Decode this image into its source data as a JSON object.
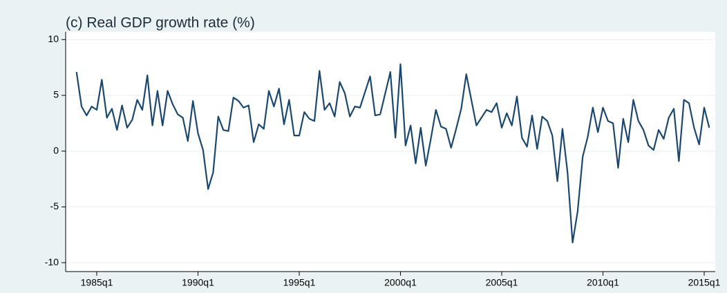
{
  "chart_data": {
    "type": "line",
    "title": "(c) Real GDP growth rate (%)",
    "x": [
      "1984q1",
      "1984q2",
      "1984q3",
      "1984q4",
      "1985q1",
      "1985q2",
      "1985q3",
      "1985q4",
      "1986q1",
      "1986q2",
      "1986q3",
      "1986q4",
      "1987q1",
      "1987q2",
      "1987q3",
      "1987q4",
      "1988q1",
      "1988q2",
      "1988q3",
      "1988q4",
      "1989q1",
      "1989q2",
      "1989q3",
      "1989q4",
      "1990q1",
      "1990q2",
      "1990q3",
      "1990q4",
      "1991q1",
      "1991q2",
      "1991q3",
      "1991q4",
      "1992q1",
      "1992q2",
      "1992q3",
      "1992q4",
      "1993q1",
      "1993q2",
      "1993q3",
      "1993q4",
      "1994q1",
      "1994q2",
      "1994q3",
      "1994q4",
      "1995q1",
      "1995q2",
      "1995q3",
      "1995q4",
      "1996q1",
      "1996q2",
      "1996q3",
      "1996q4",
      "1997q1",
      "1997q2",
      "1997q3",
      "1997q4",
      "1998q1",
      "1998q2",
      "1998q3",
      "1998q4",
      "1999q1",
      "1999q2",
      "1999q3",
      "1999q4",
      "2000q1",
      "2000q2",
      "2000q3",
      "2000q4",
      "2001q1",
      "2001q2",
      "2001q3",
      "2001q4",
      "2002q1",
      "2002q2",
      "2002q3",
      "2002q4",
      "2003q1",
      "2003q2",
      "2003q3",
      "2003q4",
      "2004q1",
      "2004q2",
      "2004q3",
      "2004q4",
      "2005q1",
      "2005q2",
      "2005q3",
      "2005q4",
      "2006q1",
      "2006q2",
      "2006q3",
      "2006q4",
      "2007q1",
      "2007q2",
      "2007q3",
      "2007q4",
      "2008q1",
      "2008q2",
      "2008q3",
      "2008q4",
      "2009q1",
      "2009q2",
      "2009q3",
      "2009q4",
      "2010q1",
      "2010q2",
      "2010q3",
      "2010q4",
      "2011q1",
      "2011q2",
      "2011q3",
      "2011q4",
      "2012q1",
      "2012q2",
      "2012q3",
      "2012q4",
      "2013q1",
      "2013q2",
      "2013q3",
      "2013q4",
      "2014q1",
      "2014q2",
      "2014q3",
      "2014q4",
      "2015q1",
      "2015q2"
    ],
    "series": [
      {
        "color": "#1a476f",
        "values": [
          7.1,
          4.0,
          3.2,
          4.0,
          3.7,
          6.4,
          3.0,
          3.8,
          1.9,
          4.1,
          2.1,
          2.8,
          4.6,
          3.7,
          6.8,
          2.3,
          5.4,
          2.3,
          5.4,
          4.2,
          3.3,
          3.0,
          0.9,
          4.5,
          1.6,
          0.1,
          -3.4,
          -1.9,
          3.1,
          1.9,
          1.8,
          4.8,
          4.5,
          3.9,
          4.1,
          0.8,
          2.4,
          2.0,
          5.4,
          4.0,
          5.6,
          2.4,
          4.6,
          1.4,
          1.4,
          3.5,
          2.9,
          2.7,
          7.2,
          3.7,
          4.3,
          3.1,
          6.2,
          5.2,
          3.1,
          4.0,
          3.9,
          5.3,
          6.7,
          3.2,
          3.3,
          5.2,
          7.1,
          1.2,
          7.8,
          0.5,
          2.3,
          -1.1,
          2.1,
          -1.3,
          1.1,
          3.7,
          2.2,
          2.0,
          0.3,
          2.0,
          3.8,
          6.9,
          4.6,
          2.3,
          3.0,
          3.7,
          3.5,
          4.3,
          2.1,
          3.4,
          2.3,
          4.9,
          1.2,
          0.4,
          3.2,
          0.2,
          3.1,
          2.7,
          1.4,
          -2.7,
          2.0,
          -1.9,
          -8.2,
          -5.4,
          -0.5,
          1.3,
          3.9,
          1.7,
          3.9,
          2.7,
          2.5,
          -1.5,
          2.9,
          0.8,
          4.6,
          2.7,
          1.9,
          0.5,
          0.1,
          1.9,
          1.1,
          3.0,
          3.8,
          -0.9,
          4.6,
          4.3,
          2.1,
          0.6,
          3.9,
          2.1
        ]
      }
    ],
    "xticks": [
      "1985q1",
      "1990q1",
      "1995q1",
      "2000q1",
      "2005q1",
      "2010q1",
      "2015q1"
    ],
    "ylim": [
      -10.8,
      10.7
    ],
    "yticks": [
      10,
      5,
      0,
      -5,
      -10
    ],
    "grid": true
  }
}
